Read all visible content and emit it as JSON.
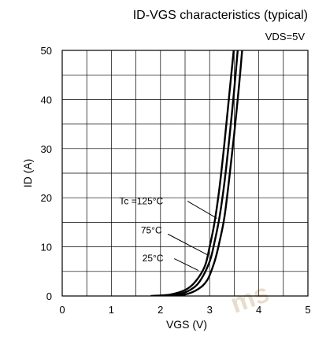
{
  "chart_data": {
    "type": "line",
    "title": "ID-VGS characteristics (typical)",
    "condition": "VDS=5V",
    "xlabel": "VGS (V)",
    "ylabel": "ID (A)",
    "xlim": [
      0,
      5
    ],
    "ylim": [
      0,
      50
    ],
    "x_ticks": [
      "0",
      "1",
      "2",
      "3",
      "4",
      "5"
    ],
    "y_ticks": [
      "0",
      "10",
      "20",
      "30",
      "40",
      "50"
    ],
    "grid": true,
    "series": [
      {
        "name": "Tc =125°C",
        "points": [
          [
            1.8,
            0
          ],
          [
            2.2,
            0.3
          ],
          [
            2.5,
            1.2
          ],
          [
            2.7,
            2.8
          ],
          [
            2.9,
            6
          ],
          [
            3.0,
            10
          ],
          [
            3.1,
            15
          ],
          [
            3.2,
            22
          ],
          [
            3.3,
            31
          ],
          [
            3.4,
            41
          ],
          [
            3.5,
            51
          ]
        ]
      },
      {
        "name": "75°C",
        "points": [
          [
            2.0,
            0
          ],
          [
            2.35,
            0.3
          ],
          [
            2.6,
            1.2
          ],
          [
            2.8,
            3
          ],
          [
            3.0,
            7
          ],
          [
            3.1,
            11
          ],
          [
            3.2,
            16
          ],
          [
            3.3,
            23
          ],
          [
            3.4,
            32
          ],
          [
            3.5,
            42
          ],
          [
            3.58,
            51
          ]
        ]
      },
      {
        "name": "25°C",
        "points": [
          [
            2.2,
            0
          ],
          [
            2.5,
            0.3
          ],
          [
            2.75,
            1.3
          ],
          [
            2.95,
            3.2
          ],
          [
            3.1,
            7
          ],
          [
            3.2,
            11
          ],
          [
            3.3,
            16
          ],
          [
            3.4,
            24
          ],
          [
            3.5,
            33
          ],
          [
            3.6,
            43
          ],
          [
            3.67,
            51
          ]
        ]
      }
    ]
  },
  "watermark": "ms"
}
